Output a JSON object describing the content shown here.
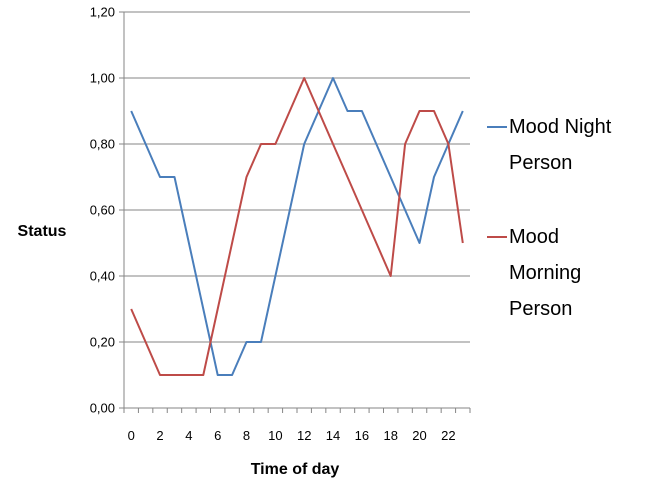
{
  "chart_data": {
    "type": "line",
    "title": "",
    "xlabel": "Time of day",
    "ylabel": "Status",
    "xlim": [
      0,
      23
    ],
    "ylim": [
      0,
      1.2
    ],
    "x_ticks": [
      "0",
      "2",
      "4",
      "6",
      "8",
      "10",
      "12",
      "14",
      "16",
      "18",
      "20",
      "22"
    ],
    "y_ticks": [
      "0,00",
      "0,20",
      "0,40",
      "0,60",
      "0,80",
      "1,00",
      "1,20"
    ],
    "grid": "horizontal",
    "legend_position": "right",
    "x": [
      0,
      1,
      2,
      3,
      4,
      5,
      6,
      7,
      8,
      9,
      10,
      11,
      12,
      13,
      14,
      15,
      16,
      17,
      18,
      19,
      20,
      21,
      22,
      23
    ],
    "series": [
      {
        "name_lines": [
          "Mood Night",
          "Person"
        ],
        "color": "#4a7ebb",
        "values": [
          0.9,
          0.8,
          0.7,
          0.7,
          0.5,
          0.3,
          0.1,
          0.1,
          0.2,
          0.2,
          0.4,
          0.6,
          0.8,
          0.9,
          1.0,
          0.9,
          0.9,
          0.8,
          0.7,
          0.6,
          0.5,
          0.7,
          0.8,
          0.9
        ]
      },
      {
        "name_lines": [
          "Mood",
          "Morning",
          "Person"
        ],
        "color": "#be4b48",
        "values": [
          0.3,
          0.2,
          0.1,
          0.1,
          0.1,
          0.1,
          0.3,
          0.5,
          0.7,
          0.8,
          0.8,
          0.9,
          1.0,
          0.9,
          0.8,
          0.7,
          0.6,
          0.5,
          0.4,
          0.8,
          0.9,
          0.9,
          0.8,
          0.5
        ]
      }
    ]
  }
}
